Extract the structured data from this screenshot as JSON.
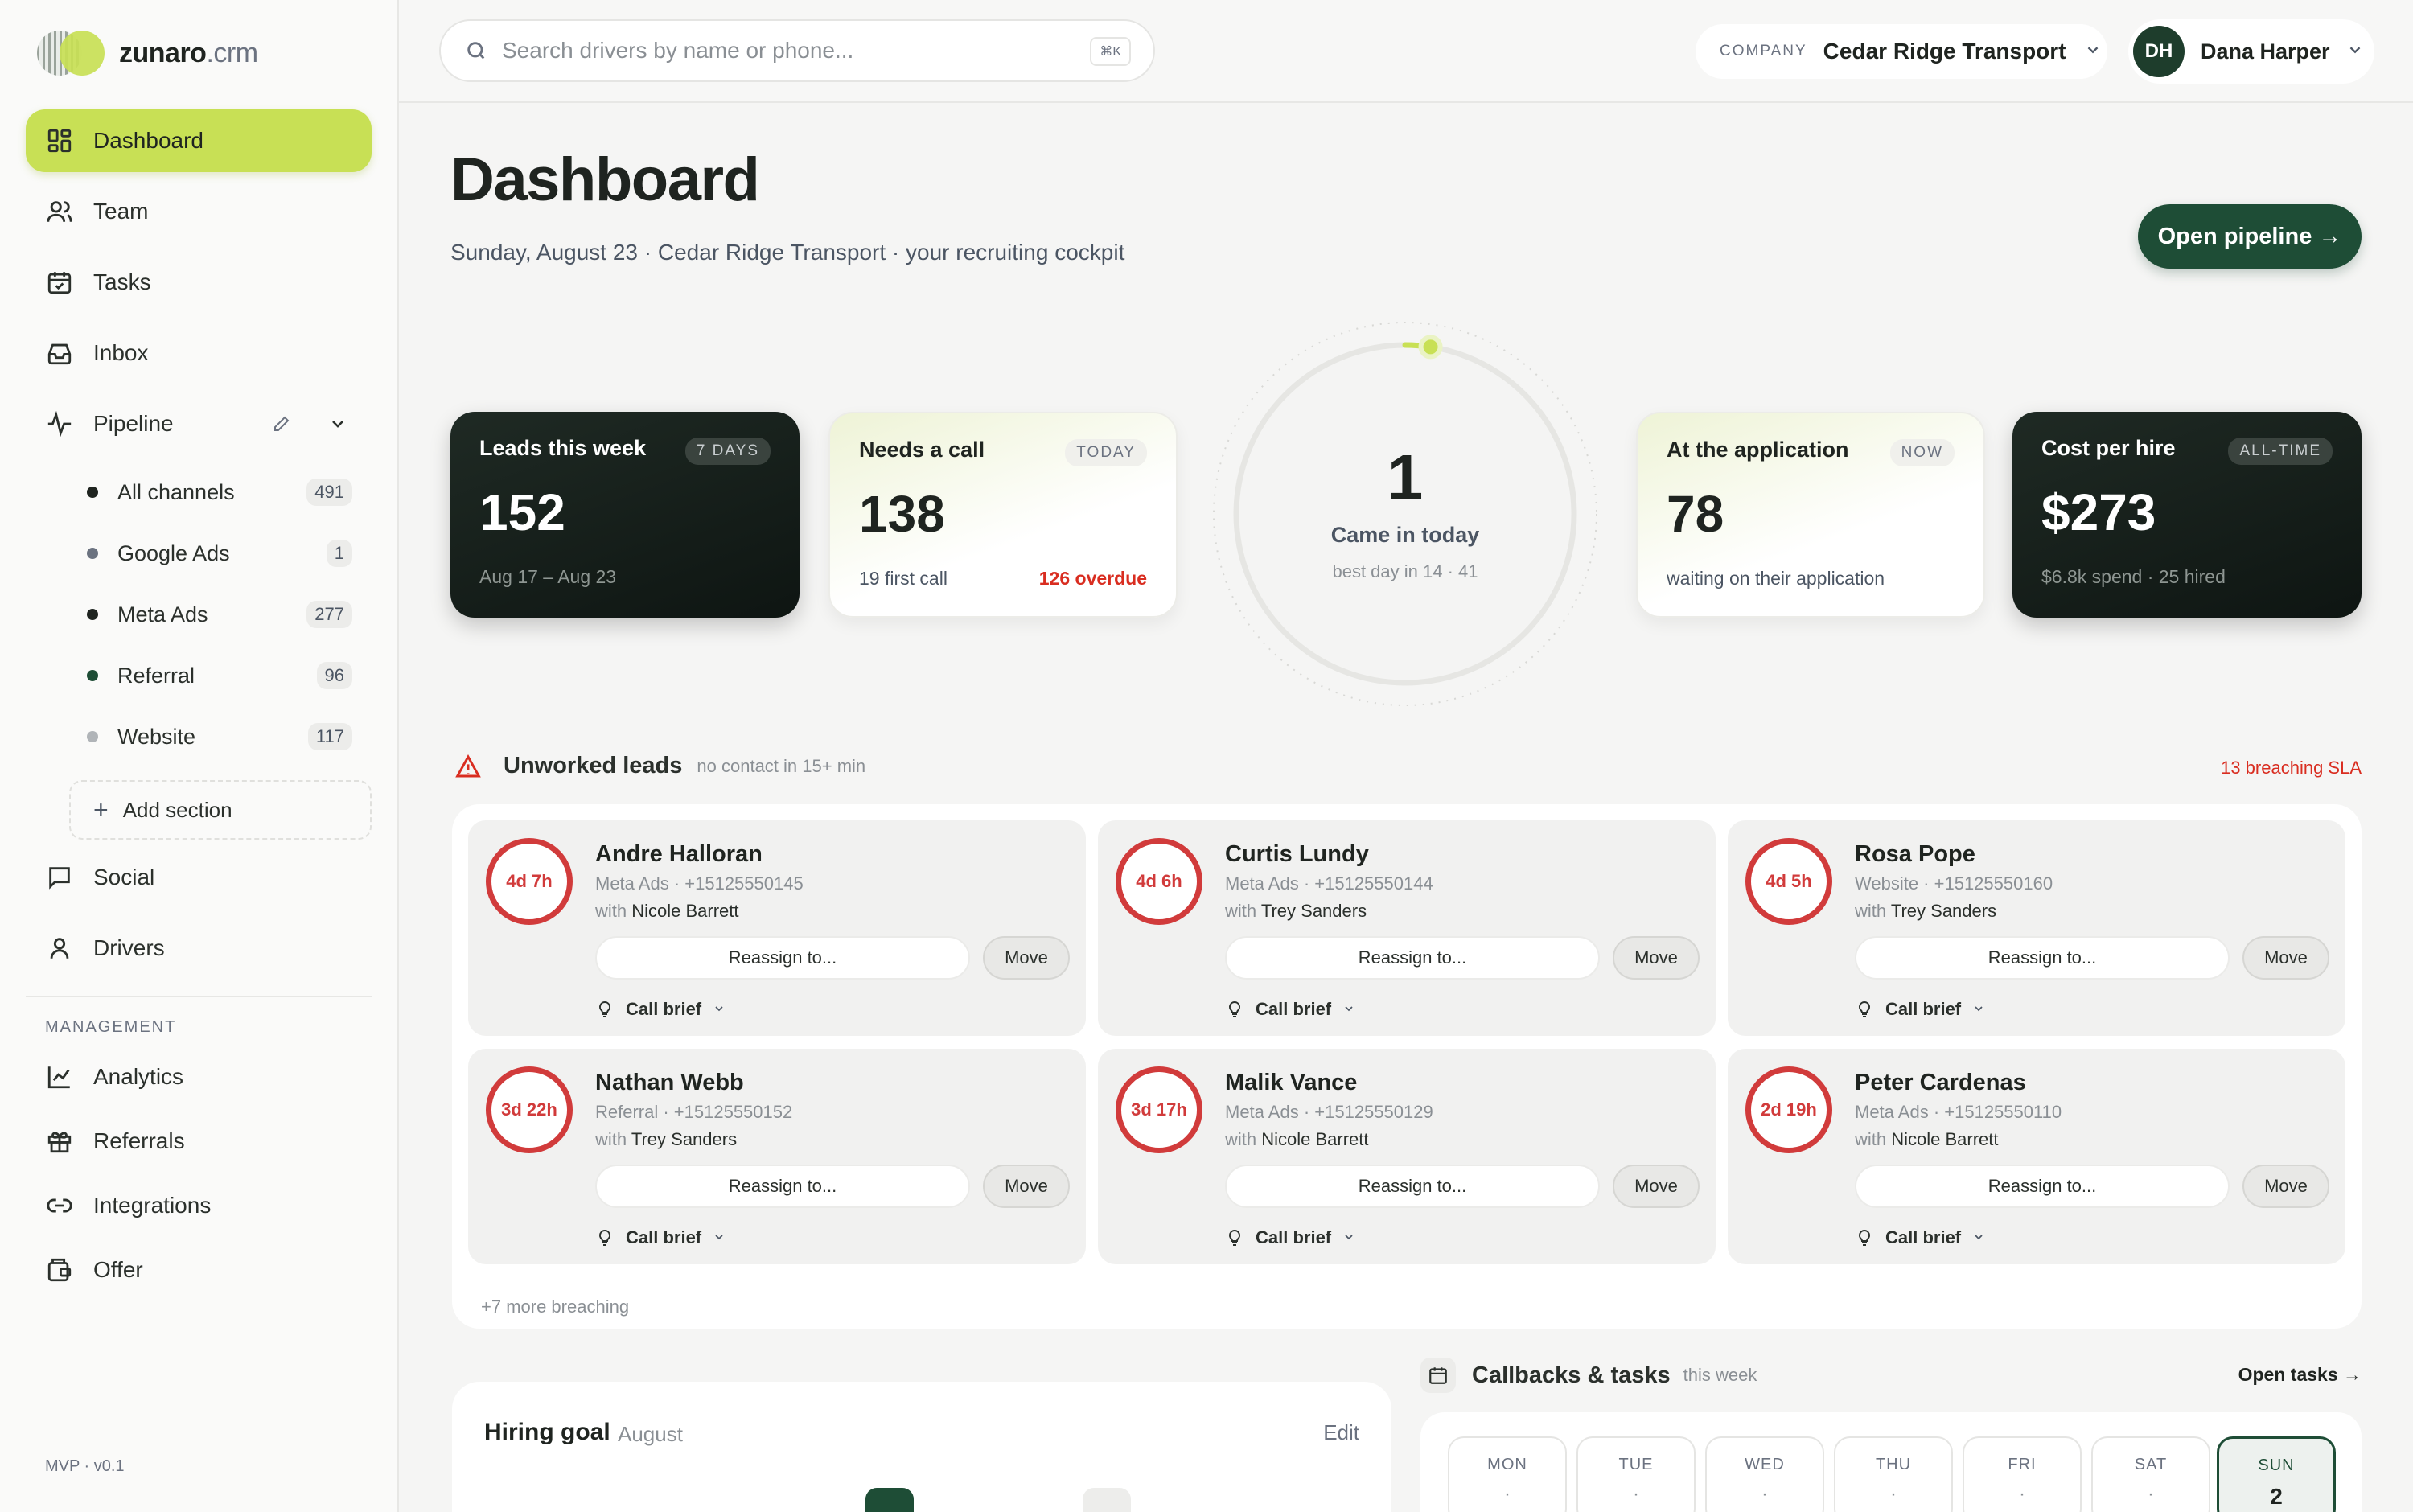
{
  "brand": {
    "name": "zunaro",
    "suffix": ".crm"
  },
  "sidebar": {
    "items": [
      {
        "label": "Dashboard",
        "icon": "dashboard-icon"
      },
      {
        "label": "Team",
        "icon": "users-icon"
      },
      {
        "label": "Tasks",
        "icon": "calendar-check-icon"
      },
      {
        "label": "Inbox",
        "icon": "inbox-icon"
      },
      {
        "label": "Pipeline",
        "icon": "activity-icon"
      }
    ],
    "pipeline_sub": [
      {
        "label": "All channels",
        "count": "491",
        "color": "#1f2420"
      },
      {
        "label": "Google Ads",
        "count": "1",
        "color": "#6b7280"
      },
      {
        "label": "Meta Ads",
        "count": "277",
        "color": "#1f2420"
      },
      {
        "label": "Referral",
        "count": "96",
        "color": "#1e4d36"
      },
      {
        "label": "Website",
        "count": "117",
        "color": "#b0b4b8"
      }
    ],
    "add_section": "Add section",
    "more_items": [
      {
        "label": "Social",
        "icon": "chat-icon"
      },
      {
        "label": "Drivers",
        "icon": "user-icon"
      }
    ],
    "management_label": "MANAGEMENT",
    "management_items": [
      {
        "label": "Analytics",
        "icon": "chart-icon"
      },
      {
        "label": "Referrals",
        "icon": "gift-icon"
      },
      {
        "label": "Integrations",
        "icon": "link-icon"
      },
      {
        "label": "Offer",
        "icon": "wallet-icon"
      }
    ],
    "version": "MVP · v0.1"
  },
  "topbar": {
    "search_placeholder": "Search drivers by name or phone...",
    "search_kbd": "⌘K",
    "company_label": "COMPANY",
    "company_value": "Cedar Ridge Transport",
    "user_initials": "DH",
    "user_name": "Dana Harper"
  },
  "header": {
    "title": "Dashboard",
    "subtitle": "Sunday, August 23 · Cedar Ridge Transport · your recruiting cockpit",
    "cta": "Open pipeline →"
  },
  "stats": {
    "leads": {
      "title": "Leads this week",
      "tag": "7 DAYS",
      "value": "152",
      "foot": "Aug 17 – Aug 23"
    },
    "call": {
      "title": "Needs a call",
      "tag": "TODAY",
      "value": "138",
      "foot": "19 first call",
      "foot_right": "126 overdue"
    },
    "ring": {
      "value": "1",
      "label": "Came in today",
      "sub": "best day in 14 · 41",
      "progress": 0.024
    },
    "application": {
      "title": "At the application",
      "tag": "NOW",
      "value": "78",
      "foot": "waiting on their application"
    },
    "cost": {
      "title": "Cost per hire",
      "tag": "ALL-TIME",
      "value": "$273",
      "foot": "$6.8k spend · 25 hired"
    }
  },
  "unworked": {
    "title": "Unworked leads",
    "meta": "no contact in 15+ min",
    "sla": "13 breaching SLA",
    "more": "+7 more breaching",
    "reassign_label": "Reassign to...",
    "move_label": "Move",
    "brief_label": "Call brief",
    "with_prefix": "with",
    "leads": [
      {
        "timer": "4d 7h",
        "name": "Andre Halloran",
        "source": "Meta Ads · +15125550145",
        "owner": "Nicole Barrett"
      },
      {
        "timer": "4d 6h",
        "name": "Curtis Lundy",
        "source": "Meta Ads · +15125550144",
        "owner": "Trey Sanders"
      },
      {
        "timer": "4d 5h",
        "name": "Rosa Pope",
        "source": "Website · +15125550160",
        "owner": "Trey Sanders"
      },
      {
        "timer": "3d 22h",
        "name": "Nathan Webb",
        "source": "Referral · +15125550152",
        "owner": "Trey Sanders"
      },
      {
        "timer": "3d 17h",
        "name": "Malik Vance",
        "source": "Meta Ads · +15125550129",
        "owner": "Nicole Barrett"
      },
      {
        "timer": "2d 19h",
        "name": "Peter Cardenas",
        "source": "Meta Ads · +15125550110",
        "owner": "Nicole Barrett"
      }
    ]
  },
  "hiring": {
    "title": "Hiring goal",
    "month": "August",
    "edit": "Edit"
  },
  "callbacks": {
    "title": "Callbacks & tasks",
    "meta": "this week",
    "open": "Open tasks →",
    "days": [
      {
        "name": "MON",
        "value": "·"
      },
      {
        "name": "TUE",
        "value": "·"
      },
      {
        "name": "WED",
        "value": "·"
      },
      {
        "name": "THU",
        "value": "·"
      },
      {
        "name": "FRI",
        "value": "·"
      },
      {
        "name": "SAT",
        "value": "·"
      },
      {
        "name": "SUN",
        "value": "2"
      }
    ]
  },
  "colors": {
    "accent": "#c8e055",
    "brand_dark": "#1e4d36",
    "danger": "#d92d20"
  }
}
